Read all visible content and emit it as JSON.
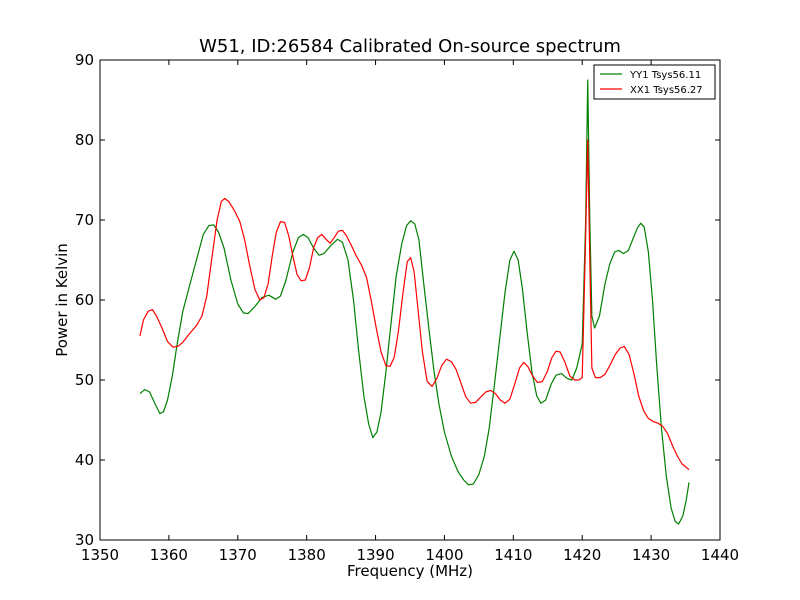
{
  "chart_data": {
    "type": "line",
    "title": "W51, ID:26584 Calibrated On-source spectrum",
    "xlabel": "Frequency (MHz)",
    "ylabel": "Power in Kelvin",
    "xlim": [
      1350,
      1440
    ],
    "ylim": [
      30,
      90
    ],
    "xticks": [
      1350,
      1360,
      1370,
      1380,
      1390,
      1400,
      1410,
      1420,
      1430,
      1440
    ],
    "yticks": [
      30,
      40,
      50,
      60,
      70,
      80,
      90
    ],
    "grid": false,
    "legend_position": "top-right",
    "series": [
      {
        "name": "YY1 Tsys56.11",
        "color": "#008000",
        "points": [
          [
            1355.8,
            48.3
          ],
          [
            1356.5,
            48.8
          ],
          [
            1357.2,
            48.5
          ],
          [
            1358.0,
            47.0
          ],
          [
            1358.7,
            45.8
          ],
          [
            1359.2,
            46.0
          ],
          [
            1359.8,
            47.5
          ],
          [
            1360.5,
            50.5
          ],
          [
            1361.2,
            54.5
          ],
          [
            1362.0,
            58.5
          ],
          [
            1363.0,
            61.8
          ],
          [
            1364.0,
            65.0
          ],
          [
            1365.0,
            68.2
          ],
          [
            1365.8,
            69.3
          ],
          [
            1366.5,
            69.4
          ],
          [
            1367.2,
            68.5
          ],
          [
            1368.0,
            66.5
          ],
          [
            1369.0,
            62.5
          ],
          [
            1370.0,
            59.5
          ],
          [
            1370.8,
            58.4
          ],
          [
            1371.5,
            58.3
          ],
          [
            1372.5,
            59.2
          ],
          [
            1373.5,
            60.3
          ],
          [
            1374.5,
            60.6
          ],
          [
            1375.5,
            60.1
          ],
          [
            1376.2,
            60.5
          ],
          [
            1377.0,
            62.5
          ],
          [
            1378.0,
            66.0
          ],
          [
            1378.8,
            67.8
          ],
          [
            1379.5,
            68.2
          ],
          [
            1380.2,
            67.8
          ],
          [
            1381.0,
            66.5
          ],
          [
            1381.8,
            65.6
          ],
          [
            1382.5,
            65.8
          ],
          [
            1383.5,
            66.8
          ],
          [
            1384.5,
            67.6
          ],
          [
            1385.2,
            67.2
          ],
          [
            1386.0,
            65.0
          ],
          [
            1386.8,
            60.0
          ],
          [
            1387.5,
            54.0
          ],
          [
            1388.3,
            48.0
          ],
          [
            1389.0,
            44.5
          ],
          [
            1389.6,
            42.8
          ],
          [
            1390.2,
            43.5
          ],
          [
            1390.8,
            46.0
          ],
          [
            1391.5,
            51.0
          ],
          [
            1392.3,
            57.5
          ],
          [
            1393.0,
            63.0
          ],
          [
            1393.8,
            67.0
          ],
          [
            1394.5,
            69.3
          ],
          [
            1395.1,
            69.9
          ],
          [
            1395.7,
            69.5
          ],
          [
            1396.3,
            67.5
          ],
          [
            1397.0,
            62.0
          ],
          [
            1397.8,
            56.0
          ],
          [
            1398.5,
            51.0
          ],
          [
            1399.2,
            47.0
          ],
          [
            1400.0,
            43.5
          ],
          [
            1401.0,
            40.5
          ],
          [
            1402.0,
            38.5
          ],
          [
            1402.8,
            37.5
          ],
          [
            1403.5,
            36.9
          ],
          [
            1404.2,
            37.0
          ],
          [
            1405.0,
            38.2
          ],
          [
            1405.8,
            40.5
          ],
          [
            1406.5,
            44.0
          ],
          [
            1407.2,
            49.0
          ],
          [
            1408.0,
            55.0
          ],
          [
            1408.8,
            61.0
          ],
          [
            1409.5,
            65.0
          ],
          [
            1410.1,
            66.1
          ],
          [
            1410.7,
            65.0
          ],
          [
            1411.3,
            61.5
          ],
          [
            1412.0,
            56.0
          ],
          [
            1412.7,
            51.0
          ],
          [
            1413.4,
            48.0
          ],
          [
            1414.0,
            47.1
          ],
          [
            1414.7,
            47.5
          ],
          [
            1415.5,
            49.5
          ],
          [
            1416.2,
            50.6
          ],
          [
            1417.0,
            50.8
          ],
          [
            1417.8,
            50.2
          ],
          [
            1418.5,
            50.0
          ],
          [
            1419.2,
            51.5
          ],
          [
            1420.0,
            54.5
          ],
          [
            1420.5,
            70.0
          ],
          [
            1420.8,
            87.5
          ],
          [
            1421.1,
            70.0
          ],
          [
            1421.4,
            58.0
          ],
          [
            1421.8,
            56.5
          ],
          [
            1422.5,
            58.0
          ],
          [
            1423.3,
            62.0
          ],
          [
            1424.0,
            64.5
          ],
          [
            1424.7,
            66.0
          ],
          [
            1425.3,
            66.2
          ],
          [
            1426.0,
            65.8
          ],
          [
            1426.7,
            66.2
          ],
          [
            1427.3,
            67.5
          ],
          [
            1428.0,
            69.0
          ],
          [
            1428.5,
            69.6
          ],
          [
            1429.0,
            69.1
          ],
          [
            1429.6,
            66.0
          ],
          [
            1430.2,
            60.0
          ],
          [
            1430.8,
            52.0
          ],
          [
            1431.5,
            44.0
          ],
          [
            1432.2,
            38.0
          ],
          [
            1432.9,
            34.0
          ],
          [
            1433.5,
            32.3
          ],
          [
            1434.0,
            32.0
          ],
          [
            1434.6,
            33.0
          ],
          [
            1435.1,
            35.0
          ],
          [
            1435.5,
            37.2
          ]
        ]
      },
      {
        "name": "XX1 Tsys56.27",
        "color": "#ff0000",
        "points": [
          [
            1355.8,
            55.5
          ],
          [
            1356.3,
            57.5
          ],
          [
            1357.0,
            58.6
          ],
          [
            1357.6,
            58.8
          ],
          [
            1358.2,
            58.0
          ],
          [
            1359.0,
            56.5
          ],
          [
            1359.8,
            54.8
          ],
          [
            1360.6,
            54.1
          ],
          [
            1361.3,
            54.2
          ],
          [
            1362.0,
            54.7
          ],
          [
            1363.0,
            55.8
          ],
          [
            1364.0,
            56.8
          ],
          [
            1364.8,
            58.0
          ],
          [
            1365.5,
            60.5
          ],
          [
            1366.2,
            65.0
          ],
          [
            1367.0,
            70.0
          ],
          [
            1367.6,
            72.3
          ],
          [
            1368.1,
            72.7
          ],
          [
            1368.7,
            72.3
          ],
          [
            1369.5,
            71.2
          ],
          [
            1370.3,
            69.8
          ],
          [
            1371.0,
            67.5
          ],
          [
            1371.8,
            64.0
          ],
          [
            1372.5,
            61.3
          ],
          [
            1373.2,
            60.0
          ],
          [
            1373.8,
            60.3
          ],
          [
            1374.4,
            62.0
          ],
          [
            1375.0,
            65.5
          ],
          [
            1375.6,
            68.5
          ],
          [
            1376.2,
            69.8
          ],
          [
            1376.8,
            69.7
          ],
          [
            1377.4,
            68.0
          ],
          [
            1378.0,
            65.5
          ],
          [
            1378.6,
            63.2
          ],
          [
            1379.2,
            62.4
          ],
          [
            1379.8,
            62.5
          ],
          [
            1380.4,
            64.0
          ],
          [
            1381.0,
            66.5
          ],
          [
            1381.6,
            67.8
          ],
          [
            1382.2,
            68.2
          ],
          [
            1382.8,
            67.6
          ],
          [
            1383.4,
            67.1
          ],
          [
            1384.0,
            67.8
          ],
          [
            1384.6,
            68.6
          ],
          [
            1385.2,
            68.7
          ],
          [
            1385.8,
            68.0
          ],
          [
            1386.5,
            66.8
          ],
          [
            1387.2,
            65.5
          ],
          [
            1388.0,
            64.3
          ],
          [
            1388.7,
            62.8
          ],
          [
            1389.4,
            59.8
          ],
          [
            1390.1,
            56.5
          ],
          [
            1390.8,
            53.5
          ],
          [
            1391.5,
            51.8
          ],
          [
            1392.1,
            51.7
          ],
          [
            1392.7,
            52.8
          ],
          [
            1393.3,
            56.0
          ],
          [
            1394.0,
            61.0
          ],
          [
            1394.6,
            64.8
          ],
          [
            1395.1,
            65.3
          ],
          [
            1395.6,
            63.5
          ],
          [
            1396.2,
            58.5
          ],
          [
            1396.8,
            53.5
          ],
          [
            1397.5,
            49.8
          ],
          [
            1398.2,
            49.2
          ],
          [
            1398.9,
            50.2
          ],
          [
            1399.6,
            51.8
          ],
          [
            1400.3,
            52.6
          ],
          [
            1401.0,
            52.3
          ],
          [
            1401.7,
            51.3
          ],
          [
            1402.4,
            49.6
          ],
          [
            1403.1,
            47.9
          ],
          [
            1403.8,
            47.1
          ],
          [
            1404.5,
            47.2
          ],
          [
            1405.2,
            47.8
          ],
          [
            1406.0,
            48.5
          ],
          [
            1406.7,
            48.7
          ],
          [
            1407.4,
            48.3
          ],
          [
            1408.1,
            47.5
          ],
          [
            1408.8,
            47.1
          ],
          [
            1409.5,
            47.6
          ],
          [
            1410.2,
            49.5
          ],
          [
            1410.9,
            51.5
          ],
          [
            1411.5,
            52.2
          ],
          [
            1412.1,
            51.7
          ],
          [
            1412.8,
            50.5
          ],
          [
            1413.5,
            49.7
          ],
          [
            1414.2,
            49.8
          ],
          [
            1414.9,
            51.0
          ],
          [
            1415.6,
            52.8
          ],
          [
            1416.2,
            53.6
          ],
          [
            1416.8,
            53.5
          ],
          [
            1417.5,
            52.2
          ],
          [
            1418.2,
            50.5
          ],
          [
            1418.9,
            50.0
          ],
          [
            1419.5,
            50.0
          ],
          [
            1420.0,
            50.3
          ],
          [
            1420.5,
            68.0
          ],
          [
            1420.8,
            80.0
          ],
          [
            1421.1,
            65.0
          ],
          [
            1421.4,
            51.5
          ],
          [
            1421.9,
            50.3
          ],
          [
            1422.6,
            50.3
          ],
          [
            1423.3,
            50.7
          ],
          [
            1424.0,
            51.8
          ],
          [
            1424.8,
            53.2
          ],
          [
            1425.5,
            54.0
          ],
          [
            1426.1,
            54.2
          ],
          [
            1426.8,
            53.2
          ],
          [
            1427.5,
            50.8
          ],
          [
            1428.2,
            48.0
          ],
          [
            1428.9,
            46.2
          ],
          [
            1429.6,
            45.2
          ],
          [
            1430.3,
            44.8
          ],
          [
            1431.0,
            44.6
          ],
          [
            1431.7,
            44.2
          ],
          [
            1432.4,
            43.3
          ],
          [
            1433.1,
            41.8
          ],
          [
            1433.8,
            40.5
          ],
          [
            1434.5,
            39.5
          ],
          [
            1435.5,
            38.8
          ]
        ]
      }
    ]
  }
}
